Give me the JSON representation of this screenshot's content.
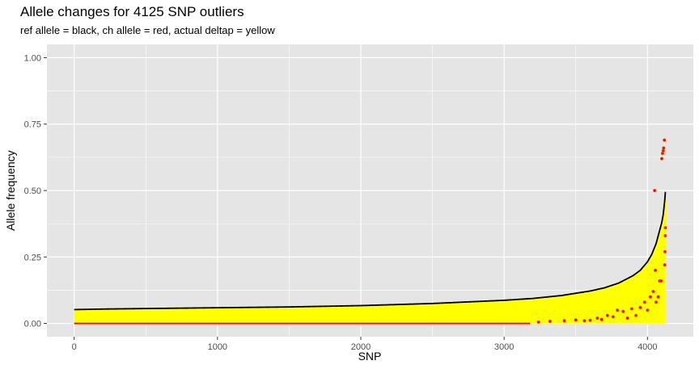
{
  "chart_data": {
    "type": "line",
    "title": "Allele changes for 4125 SNP outliers",
    "subtitle": "ref allele = black, ch allele = red, actual deltap = yellow",
    "xlabel": "SNP",
    "ylabel": "Allele frequency",
    "xlim": [
      -190,
      4320
    ],
    "ylim": [
      -0.05,
      1.05
    ],
    "x_ticks": [
      0,
      1000,
      2000,
      3000,
      4000
    ],
    "x_tick_labels": [
      "0",
      "1000",
      "2000",
      "3000",
      "4000"
    ],
    "y_ticks": [
      0,
      0.25,
      0.5,
      0.75,
      1
    ],
    "y_tick_labels": [
      "0.00",
      "0.25",
      "0.50",
      "0.75",
      "1.00"
    ],
    "grid": true,
    "legend": "none",
    "n_snps": 4125,
    "colors": {
      "panel": "#e5e5e5",
      "grid": "#ffffff",
      "ref": "#000000",
      "ch": "#ff0000",
      "deltap": "#ffff00",
      "point_outline": "#e07000"
    },
    "series": [
      {
        "name": "ref allele",
        "color": "#000000",
        "points": [
          [
            0,
            0.052
          ],
          [
            200,
            0.054
          ],
          [
            500,
            0.056
          ],
          [
            1000,
            0.059
          ],
          [
            1500,
            0.062
          ],
          [
            2000,
            0.067
          ],
          [
            2500,
            0.075
          ],
          [
            3000,
            0.087
          ],
          [
            3200,
            0.094
          ],
          [
            3400,
            0.105
          ],
          [
            3600,
            0.122
          ],
          [
            3700,
            0.134
          ],
          [
            3800,
            0.152
          ],
          [
            3900,
            0.18
          ],
          [
            3950,
            0.2
          ],
          [
            4000,
            0.232
          ],
          [
            4030,
            0.26
          ],
          [
            4060,
            0.3
          ],
          [
            4080,
            0.34
          ],
          [
            4100,
            0.38
          ],
          [
            4110,
            0.41
          ],
          [
            4120,
            0.46
          ],
          [
            4125,
            0.495
          ]
        ]
      },
      {
        "name": "ch allele",
        "color": "#ff0000",
        "baseline": [
          [
            0,
            0.0
          ],
          [
            3180,
            0.0
          ]
        ],
        "points": [
          [
            3240,
            0.005
          ],
          [
            3320,
            0.008
          ],
          [
            3420,
            0.01
          ],
          [
            3500,
            0.013
          ],
          [
            3560,
            0.01
          ],
          [
            3600,
            0.012
          ],
          [
            3650,
            0.02
          ],
          [
            3680,
            0.015
          ],
          [
            3720,
            0.03
          ],
          [
            3760,
            0.025
          ],
          [
            3790,
            0.05
          ],
          [
            3830,
            0.045
          ],
          [
            3860,
            0.02
          ],
          [
            3890,
            0.055
          ],
          [
            3920,
            0.03
          ],
          [
            3950,
            0.06
          ],
          [
            3980,
            0.08
          ],
          [
            4000,
            0.05
          ],
          [
            4020,
            0.1
          ],
          [
            4040,
            0.12
          ],
          [
            4050,
            0.5
          ],
          [
            4055,
            0.2
          ],
          [
            4060,
            0.08
          ],
          [
            4075,
            0.1
          ],
          [
            4085,
            0.16
          ],
          [
            4095,
            0.16
          ],
          [
            4100,
            0.62
          ],
          [
            4105,
            0.64
          ],
          [
            4110,
            0.65
          ],
          [
            4113,
            0.66
          ],
          [
            4118,
            0.69
          ],
          [
            4120,
            0.22
          ],
          [
            4122,
            0.27
          ],
          [
            4124,
            0.33
          ],
          [
            4125,
            0.36
          ]
        ]
      },
      {
        "name": "actual deltap",
        "color": "#ffff00"
      }
    ]
  }
}
